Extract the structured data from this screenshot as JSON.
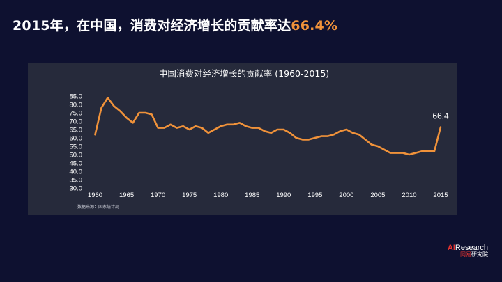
{
  "headline": {
    "text": "2015年，在中国，消费对经济增长的贡献率达",
    "highlight": "66.4%"
  },
  "brand": {
    "ai": "AI",
    "research": "Research",
    "cn_red": "网易",
    "cn_white": "研究院"
  },
  "colors": {
    "background": "#0e1130",
    "panel": "#262a3b",
    "accent": "#f0923a",
    "text": "#ffffff"
  },
  "chart_data": {
    "type": "line",
    "title": "中国消费对经济增长的贡献率 (1960-2015)",
    "source": "数据来源：国家统计局",
    "xlabel": "",
    "ylabel": "",
    "xlim": [
      1959.5,
      2015
    ],
    "ylim": [
      30,
      85
    ],
    "y_ticks": [
      "85.0",
      "80.0",
      "75.0",
      "70.0",
      "65.0",
      "60.0",
      "55.0",
      "50.0",
      "45.0",
      "40.0",
      "35.0",
      "30.0"
    ],
    "x_ticks": [
      "1960",
      "1965",
      "1970",
      "1975",
      "1980",
      "1985",
      "1990",
      "1995",
      "2000",
      "2005",
      "2010",
      "2015"
    ],
    "end_label": "66.4",
    "grid": false,
    "legend": "none",
    "series": [
      {
        "x": [
          1960,
          1961,
          1962,
          1963,
          1964,
          1965,
          1966,
          1967,
          1968,
          1969,
          1970,
          1971,
          1972,
          1973,
          1974,
          1975,
          1976,
          1977,
          1978,
          1979,
          1980,
          1981,
          1982,
          1983,
          1984,
          1985,
          1986,
          1987,
          1988,
          1989,
          1990,
          1991,
          1992,
          1993,
          1994,
          1995,
          1996,
          1997,
          1998,
          1999,
          2000,
          2001,
          2002,
          2003,
          2004,
          2005,
          2006,
          2007,
          2008,
          2009,
          2010,
          2011,
          2012,
          2013,
          2014,
          2015
        ],
        "values": [
          62,
          78,
          84,
          79,
          76,
          72,
          69,
          75,
          75,
          74,
          66,
          66,
          68,
          66,
          67,
          65,
          67,
          66,
          63,
          65,
          67,
          68,
          68,
          69,
          67,
          66,
          66,
          64,
          63,
          65,
          65,
          63,
          60,
          59,
          59,
          60,
          61,
          61,
          62,
          64,
          65,
          63,
          62,
          59,
          56,
          55,
          53,
          51,
          51,
          51,
          50,
          51,
          52,
          52,
          52,
          66.4
        ]
      }
    ]
  }
}
